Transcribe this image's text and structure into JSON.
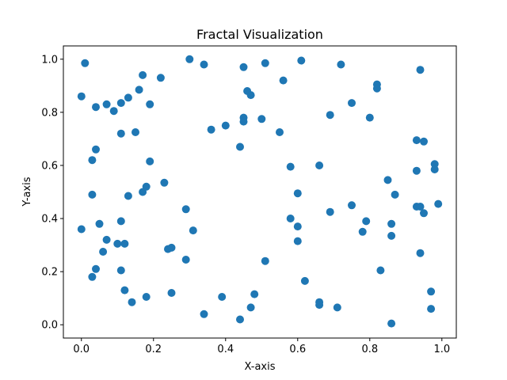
{
  "chart_data": {
    "type": "scatter",
    "title": "Fractal Visualization",
    "xlabel": "X-axis",
    "ylabel": "Y-axis",
    "xlim": [
      -0.05,
      1.04
    ],
    "ylim": [
      -0.05,
      1.05
    ],
    "xticks": [
      "0.0",
      "0.2",
      "0.4",
      "0.6",
      "0.8",
      "1.0"
    ],
    "yticks": [
      "0.0",
      "0.2",
      "0.4",
      "0.6",
      "0.8",
      "1.0"
    ],
    "grid": false,
    "marker_color": "#1f77b4",
    "points": [
      [
        0.01,
        0.985
      ],
      [
        0.3,
        1.0
      ],
      [
        0.34,
        0.98
      ],
      [
        0.51,
        0.985
      ],
      [
        0.61,
        0.995
      ],
      [
        0.72,
        0.98
      ],
      [
        0.45,
        0.97
      ],
      [
        0.94,
        0.96
      ],
      [
        0.17,
        0.94
      ],
      [
        0.22,
        0.93
      ],
      [
        0.56,
        0.92
      ],
      [
        0.82,
        0.905
      ],
      [
        0.82,
        0.89
      ],
      [
        0.16,
        0.885
      ],
      [
        0.46,
        0.88
      ],
      [
        0.47,
        0.865
      ],
      [
        0.0,
        0.86
      ],
      [
        0.13,
        0.855
      ],
      [
        0.75,
        0.835
      ],
      [
        0.07,
        0.83
      ],
      [
        0.11,
        0.835
      ],
      [
        0.19,
        0.83
      ],
      [
        0.04,
        0.82
      ],
      [
        0.09,
        0.805
      ],
      [
        0.69,
        0.79
      ],
      [
        0.45,
        0.78
      ],
      [
        0.5,
        0.775
      ],
      [
        0.8,
        0.78
      ],
      [
        0.45,
        0.765
      ],
      [
        0.4,
        0.75
      ],
      [
        0.36,
        0.735
      ],
      [
        0.55,
        0.725
      ],
      [
        0.11,
        0.72
      ],
      [
        0.15,
        0.725
      ],
      [
        0.93,
        0.695
      ],
      [
        0.95,
        0.69
      ],
      [
        0.44,
        0.67
      ],
      [
        0.04,
        0.66
      ],
      [
        0.03,
        0.62
      ],
      [
        0.19,
        0.615
      ],
      [
        0.98,
        0.605
      ],
      [
        0.66,
        0.6
      ],
      [
        0.58,
        0.595
      ],
      [
        0.93,
        0.58
      ],
      [
        0.98,
        0.585
      ],
      [
        0.85,
        0.545
      ],
      [
        0.23,
        0.535
      ],
      [
        0.18,
        0.52
      ],
      [
        0.17,
        0.5
      ],
      [
        0.6,
        0.495
      ],
      [
        0.03,
        0.49
      ],
      [
        0.87,
        0.49
      ],
      [
        0.13,
        0.485
      ],
      [
        0.99,
        0.455
      ],
      [
        0.75,
        0.45
      ],
      [
        0.93,
        0.445
      ],
      [
        0.94,
        0.445
      ],
      [
        0.69,
        0.425
      ],
      [
        0.95,
        0.42
      ],
      [
        0.29,
        0.435
      ],
      [
        0.58,
        0.4
      ],
      [
        0.79,
        0.39
      ],
      [
        0.11,
        0.39
      ],
      [
        0.05,
        0.38
      ],
      [
        0.86,
        0.38
      ],
      [
        0.6,
        0.37
      ],
      [
        0.0,
        0.36
      ],
      [
        0.31,
        0.355
      ],
      [
        0.78,
        0.35
      ],
      [
        0.86,
        0.335
      ],
      [
        0.07,
        0.32
      ],
      [
        0.6,
        0.315
      ],
      [
        0.12,
        0.305
      ],
      [
        0.1,
        0.305
      ],
      [
        0.24,
        0.285
      ],
      [
        0.25,
        0.29
      ],
      [
        0.06,
        0.275
      ],
      [
        0.94,
        0.27
      ],
      [
        0.29,
        0.245
      ],
      [
        0.51,
        0.24
      ],
      [
        0.04,
        0.21
      ],
      [
        0.11,
        0.205
      ],
      [
        0.83,
        0.205
      ],
      [
        0.03,
        0.18
      ],
      [
        0.62,
        0.165
      ],
      [
        0.12,
        0.13
      ],
      [
        0.97,
        0.125
      ],
      [
        0.25,
        0.12
      ],
      [
        0.48,
        0.115
      ],
      [
        0.39,
        0.105
      ],
      [
        0.18,
        0.105
      ],
      [
        0.14,
        0.085
      ],
      [
        0.66,
        0.085
      ],
      [
        0.66,
        0.075
      ],
      [
        0.47,
        0.065
      ],
      [
        0.71,
        0.065
      ],
      [
        0.97,
        0.06
      ],
      [
        0.34,
        0.04
      ],
      [
        0.44,
        0.02
      ],
      [
        0.86,
        0.005
      ]
    ]
  }
}
